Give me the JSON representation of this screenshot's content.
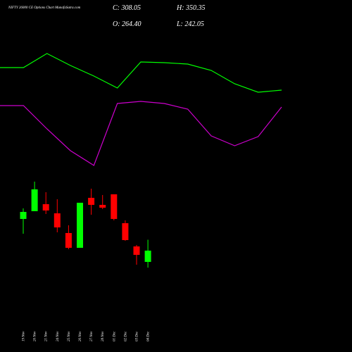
{
  "header": {
    "title": "NIFTY 26000  CE  Options  Chart  MunafaSutra.com",
    "close": "C: 308.05",
    "high": "H: 350.35",
    "open": "O: 264.40",
    "low": "L: 242.05"
  },
  "chart_data": [
    {
      "type": "candlestick",
      "categories": [
        "19 Nov",
        "20 Nov",
        "21 Nov",
        "24 Nov",
        "25 Nov",
        "26 Nov",
        "27 Nov",
        "28 Nov",
        "01 Dec",
        "02 Dec",
        "03 Dec",
        "04 Dec"
      ],
      "open": [
        430.9,
        461.0,
        488.2,
        452.7,
        376.3,
        319.0,
        512.8,
        485.5,
        526.4,
        414.5,
        324.4,
        264.4
      ],
      "high": [
        471.9,
        575.6,
        534.6,
        507.3,
        406.3,
        493.7,
        548.3,
        523.7,
        526.4,
        425.4,
        329.9,
        350.35
      ],
      "low": [
        373.6,
        461.0,
        450.0,
        379.0,
        313.5,
        319.0,
        447.3,
        469.1,
        425.4,
        346.3,
        253.5,
        242.05
      ],
      "close": [
        458.2,
        545.6,
        463.7,
        398.1,
        319.0,
        493.7,
        485.5,
        474.6,
        430.9,
        349.0,
        291.7,
        308.05
      ],
      "up_color": "#00ff00",
      "down_color": "#ff0000",
      "ylim": [
        188,
        597.4
      ]
    },
    {
      "type": "line",
      "categories": [
        null,
        null,
        null,
        null,
        null,
        null,
        null,
        null,
        null,
        null,
        null,
        null,
        null
      ],
      "series": [
        {
          "color": "#00ff00",
          "values": [
            154,
            154,
            174,
            157,
            142,
            125,
            162,
            161,
            159,
            150,
            131,
            119,
            122
          ]
        },
        {
          "color": "#cc00cc",
          "values": [
            100,
            100,
            67,
            36,
            15,
            103,
            106,
            103,
            95,
            57,
            43,
            56,
            98
          ]
        }
      ],
      "ylim": [
        0,
        250
      ]
    }
  ]
}
